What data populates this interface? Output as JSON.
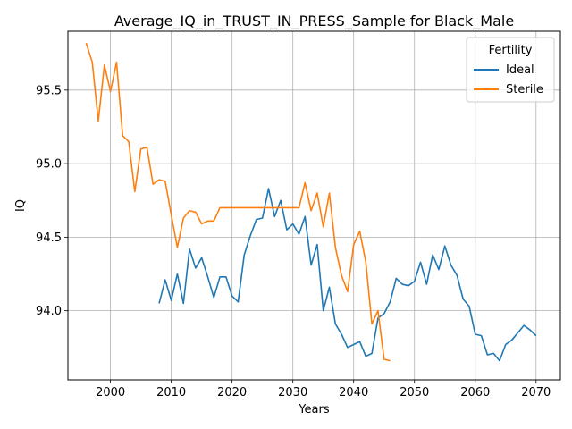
{
  "chart_data": {
    "type": "line",
    "title": "Average_IQ_in_TRUST_IN_PRESS_Sample for Black_Male",
    "xlabel": "Years",
    "ylabel": "IQ",
    "xlim": [
      1993,
      2074
    ],
    "ylim": [
      93.53,
      95.9
    ],
    "xticks": [
      2000,
      2010,
      2020,
      2030,
      2040,
      2050,
      2060,
      2070
    ],
    "yticks": [
      94.0,
      94.5,
      95.0,
      95.5
    ],
    "ytick_labels": [
      "94.0",
      "94.5",
      "95.0",
      "95.5"
    ],
    "grid": true,
    "legend": {
      "title": "Fertility",
      "position": "top-right"
    },
    "series": [
      {
        "name": "Ideal",
        "color": "#1f77b4",
        "x": [
          2008,
          2009,
          2010,
          2011,
          2012,
          2013,
          2014,
          2015,
          2016,
          2017,
          2018,
          2019,
          2020,
          2021,
          2022,
          2023,
          2024,
          2025,
          2026,
          2027,
          2028,
          2029,
          2030,
          2031,
          2032,
          2033,
          2034,
          2035,
          2036,
          2037,
          2038,
          2039,
          2040,
          2041,
          2042,
          2043,
          2044,
          2045,
          2046,
          2047,
          2048,
          2049,
          2050,
          2051,
          2052,
          2053,
          2054,
          2055,
          2056,
          2057,
          2058,
          2059,
          2060,
          2061,
          2062,
          2063,
          2064,
          2065,
          2066,
          2067,
          2068,
          2069,
          2070
        ],
        "values": [
          94.05,
          94.21,
          94.07,
          94.25,
          94.05,
          94.42,
          94.29,
          94.36,
          94.23,
          94.09,
          94.23,
          94.23,
          94.1,
          94.06,
          94.38,
          94.51,
          94.62,
          94.63,
          94.83,
          94.64,
          94.75,
          94.55,
          94.59,
          94.52,
          94.64,
          94.31,
          94.45,
          94.0,
          94.16,
          93.91,
          93.84,
          93.75,
          93.77,
          93.79,
          93.69,
          93.71,
          93.95,
          93.98,
          94.06,
          94.22,
          94.18,
          94.17,
          94.2,
          94.33,
          94.18,
          94.38,
          94.28,
          94.44,
          94.31,
          94.24,
          94.08,
          94.03,
          93.84,
          93.83,
          93.7,
          93.71,
          93.66,
          93.77,
          93.8,
          93.85,
          93.9,
          93.87,
          93.83
        ]
      },
      {
        "name": "Sterile",
        "color": "#ff7f0e",
        "x": [
          1996,
          1997,
          1998,
          1999,
          2000,
          2001,
          2002,
          2003,
          2004,
          2005,
          2006,
          2007,
          2008,
          2009,
          2010,
          2011,
          2012,
          2013,
          2014,
          2015,
          2016,
          2017,
          2018,
          2019,
          2020,
          2021,
          2022,
          2023,
          2024,
          2025,
          2026,
          2027,
          2028,
          2029,
          2030,
          2031,
          2032,
          2033,
          2034,
          2035,
          2036,
          2037,
          2038,
          2039,
          2040,
          2041,
          2042,
          2043,
          2044,
          2045,
          2046
        ],
        "values": [
          95.82,
          95.69,
          95.29,
          95.67,
          95.49,
          95.69,
          95.19,
          95.15,
          94.81,
          95.1,
          95.11,
          94.86,
          94.89,
          94.88,
          94.65,
          94.43,
          94.63,
          94.68,
          94.67,
          94.59,
          94.61,
          94.61,
          94.7,
          94.7,
          94.7,
          94.7,
          94.7,
          94.7,
          94.7,
          94.7,
          94.7,
          94.7,
          94.7,
          94.7,
          94.7,
          94.7,
          94.87,
          94.68,
          94.8,
          94.57,
          94.8,
          94.43,
          94.24,
          94.13,
          94.45,
          94.54,
          94.33,
          93.91,
          94.0,
          93.67,
          93.66
        ]
      }
    ]
  }
}
